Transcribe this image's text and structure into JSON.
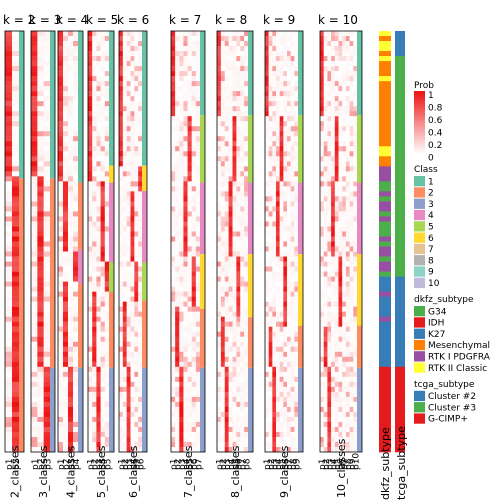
{
  "chart_data": {
    "type": "heatmap",
    "panels": [
      {
        "k": 2,
        "title": "k = 2",
        "xlabel": "2_classes",
        "ticks": [
          "p1",
          "p2"
        ]
      },
      {
        "k": 3,
        "title": "k = 3",
        "xlabel": "3_classes",
        "ticks": [
          "p1",
          "p2",
          "p3"
        ]
      },
      {
        "k": 4,
        "title": "k = 4",
        "xlabel": "4_classes",
        "ticks": [
          "p1",
          "p2",
          "p3",
          "p4"
        ]
      },
      {
        "k": 5,
        "title": "k = 5",
        "xlabel": "5_classes",
        "ticks": [
          "p1",
          "p2",
          "p3",
          "p4",
          "p5"
        ]
      },
      {
        "k": 6,
        "title": "k = 6",
        "xlabel": "6_classes",
        "ticks": [
          "p1",
          "p2",
          "p3",
          "p4",
          "p5",
          "p6"
        ]
      },
      {
        "k": 7,
        "title": "k = 7",
        "xlabel": "7_classes",
        "ticks": [
          "p1",
          "p2",
          "p3",
          "p4",
          "p5",
          "p6",
          "p7"
        ]
      },
      {
        "k": 8,
        "title": "k = 8",
        "xlabel": "8_classes",
        "ticks": [
          "p1",
          "p2",
          "p3",
          "p4",
          "p5",
          "p6",
          "p7",
          "p8"
        ]
      },
      {
        "k": 9,
        "title": "k = 9",
        "xlabel": "9_classes",
        "ticks": [
          "p1",
          "p2",
          "p3",
          "p4",
          "p5",
          "p6",
          "p7",
          "p8",
          "p9"
        ]
      },
      {
        "k": 10,
        "title": "k = 10",
        "xlabel": "10_classes",
        "ticks": [
          "p1",
          "p2",
          "p3",
          "p4",
          "p5",
          "p6",
          "p7",
          "p8",
          "p9",
          "p10"
        ]
      }
    ],
    "annotation_columns": [
      "dkfz_subtype",
      "tcga_subtype"
    ],
    "legends": {
      "prob": {
        "title": "Prob",
        "ticks": [
          "1",
          "0.8",
          "0.6",
          "0.4",
          "0.2",
          "0"
        ],
        "low_color": "#ffffff",
        "high_color": "#ee1111"
      },
      "class": {
        "title": "Class",
        "items": [
          {
            "label": "1",
            "color": "#66c2a5"
          },
          {
            "label": "2",
            "color": "#fc8d62"
          },
          {
            "label": "3",
            "color": "#8da0cb"
          },
          {
            "label": "4",
            "color": "#e78ac3"
          },
          {
            "label": "5",
            "color": "#a6d854"
          },
          {
            "label": "6",
            "color": "#ffd92f"
          },
          {
            "label": "7",
            "color": "#e5c494"
          },
          {
            "label": "8",
            "color": "#b3b3b3"
          },
          {
            "label": "9",
            "color": "#8dd3c7"
          },
          {
            "label": "10",
            "color": "#bebada"
          }
        ]
      },
      "dkfz_subtype": {
        "title": "dkfz_subtype",
        "items": [
          {
            "label": "G34",
            "color": "#4daf4a"
          },
          {
            "label": "IDH",
            "color": "#e41a1c"
          },
          {
            "label": "K27",
            "color": "#377eb8"
          },
          {
            "label": "Mesenchymal",
            "color": "#ff7f00"
          },
          {
            "label": "RTK I PDGFRA",
            "color": "#984ea3"
          },
          {
            "label": "RTK II Classic",
            "color": "#ffff33"
          }
        ]
      },
      "tcga_subtype": {
        "title": "tcga_subtype",
        "items": [
          {
            "label": "Cluster #2",
            "color": "#377eb8"
          },
          {
            "label": "Cluster #3",
            "color": "#4daf4a"
          },
          {
            "label": "G-CIMP+",
            "color": "#e41a1c"
          }
        ]
      }
    }
  }
}
